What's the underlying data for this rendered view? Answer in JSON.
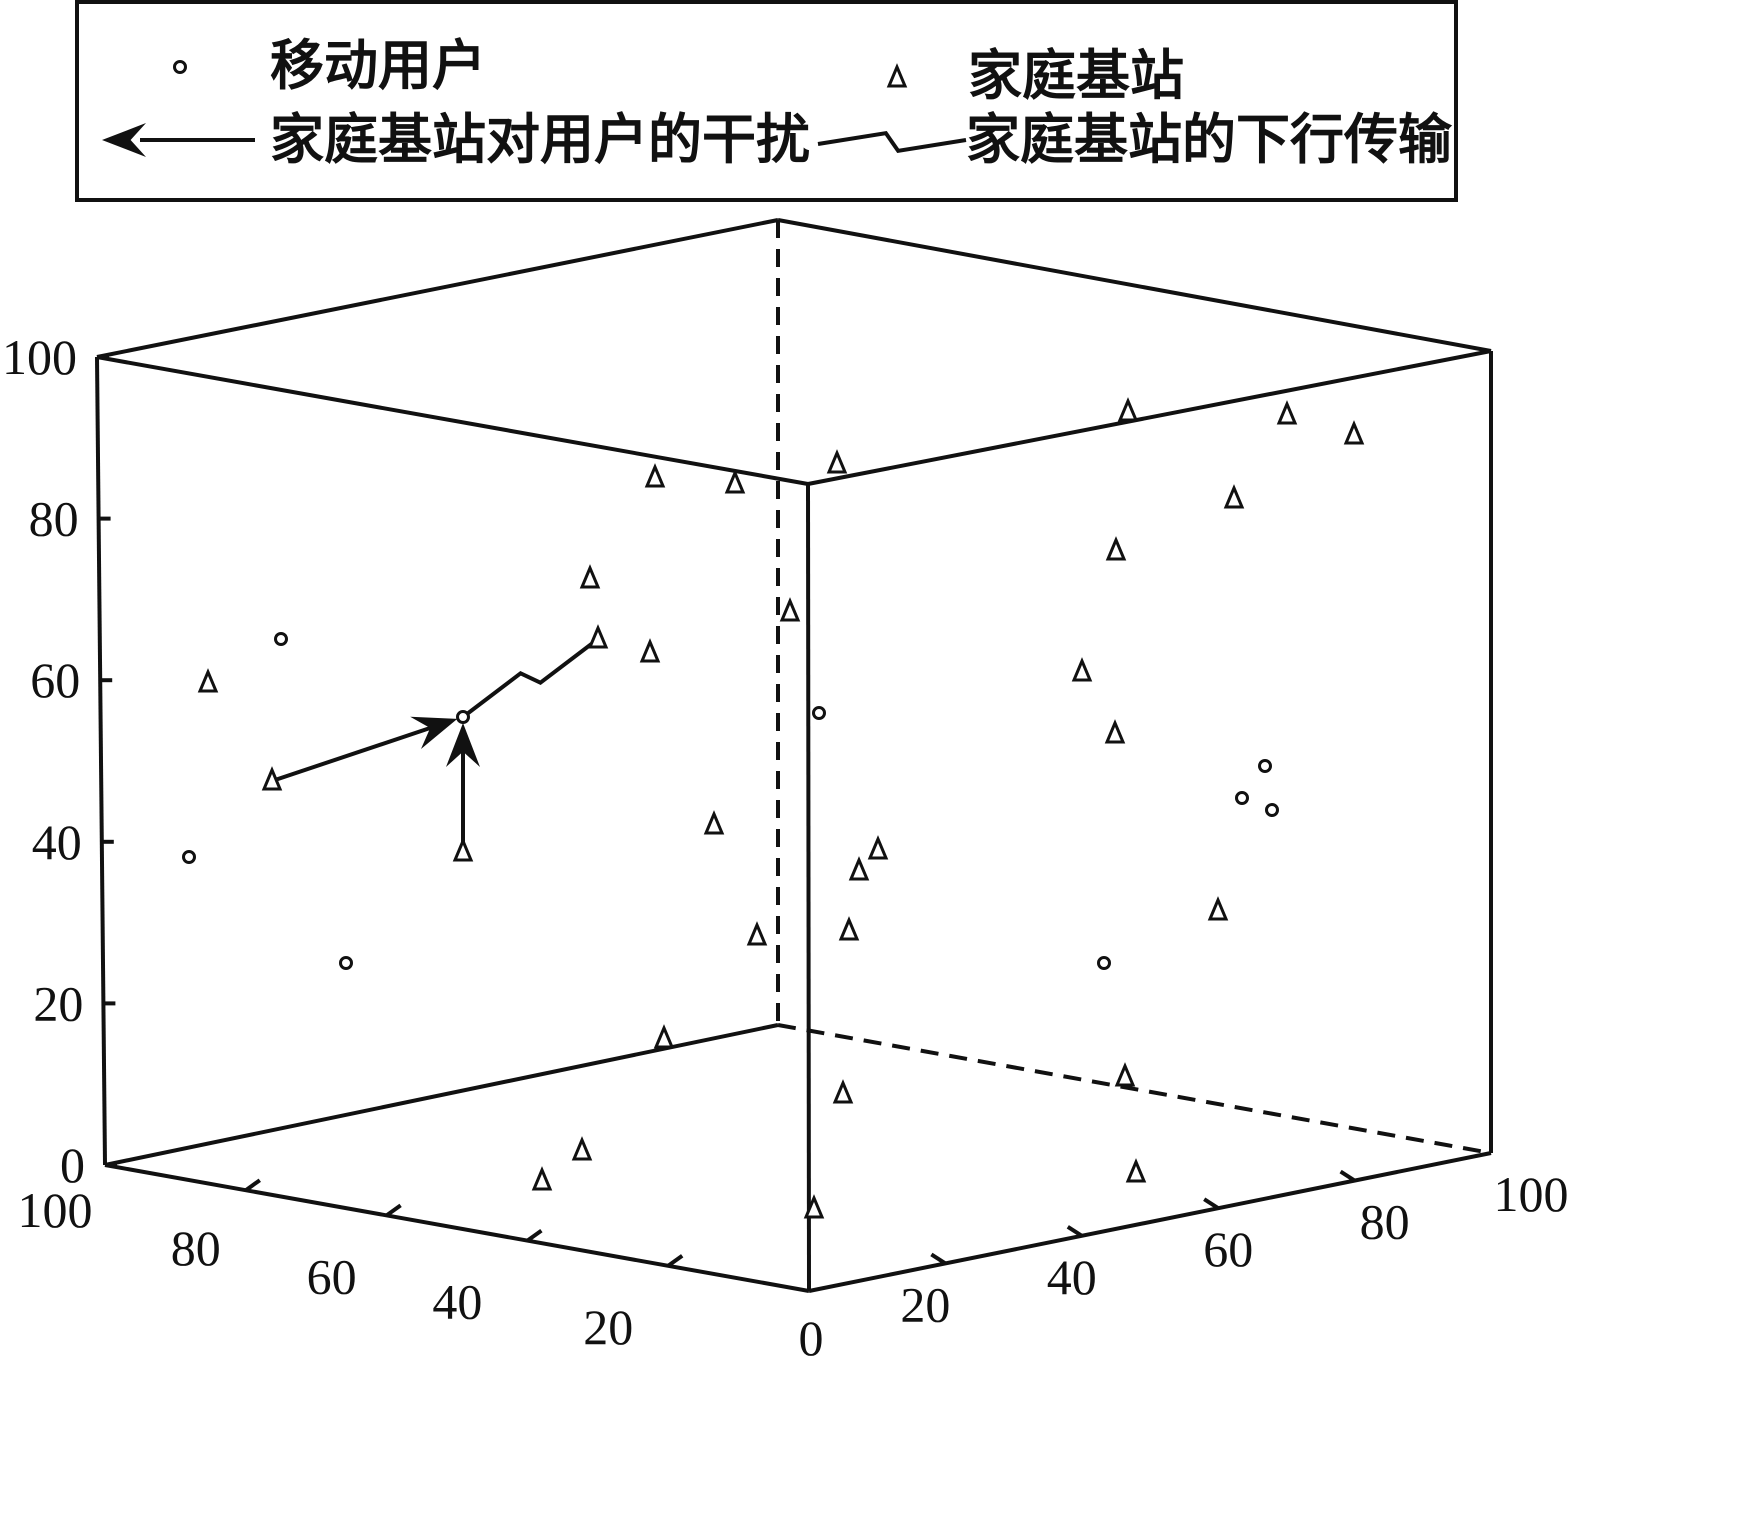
{
  "chart_data": {
    "type": "scatter",
    "dimensions": 3,
    "legend": {
      "placement": "top",
      "items": [
        {
          "label": "移动用户",
          "marker": "circle"
        },
        {
          "label": "家庭基站",
          "marker": "triangle"
        },
        {
          "label": "家庭基站对用户的干扰",
          "marker": "arrow"
        },
        {
          "label": "家庭基站的下行传输",
          "marker": "lightning"
        }
      ]
    },
    "axes": {
      "z_ticks": [
        "0",
        "20",
        "40",
        "60",
        "80",
        "100"
      ],
      "left_ticks": [
        "100",
        "80",
        "60",
        "40",
        "20",
        "0"
      ],
      "right_ticks": [
        "0",
        "20",
        "40",
        "60",
        "80",
        "100"
      ],
      "range": [
        0,
        100
      ]
    },
    "series": [
      {
        "name": "移动用户",
        "marker": "circle",
        "points": [
          [
            281,
            639
          ],
          [
            463,
            717
          ],
          [
            189,
            857
          ],
          [
            346,
            963
          ],
          [
            819,
            713
          ],
          [
            1265,
            766
          ],
          [
            1242,
            798
          ],
          [
            1272,
            810
          ],
          [
            1104,
            963
          ]
        ]
      },
      {
        "name": "家庭基站",
        "marker": "triangle",
        "points": [
          [
            655,
            478
          ],
          [
            735,
            484
          ],
          [
            837,
            464
          ],
          [
            590,
            579
          ],
          [
            598,
            639
          ],
          [
            650,
            653
          ],
          [
            790,
            612
          ],
          [
            208,
            683
          ],
          [
            272,
            781
          ],
          [
            463,
            852
          ],
          [
            714,
            825
          ],
          [
            757,
            936
          ],
          [
            859,
            871
          ],
          [
            878,
            850
          ],
          [
            849,
            931
          ],
          [
            664,
            1039
          ],
          [
            843,
            1094
          ],
          [
            582,
            1151
          ],
          [
            542,
            1181
          ],
          [
            814,
            1209
          ],
          [
            1128,
            412
          ],
          [
            1287,
            415
          ],
          [
            1354,
            435
          ],
          [
            1234,
            499
          ],
          [
            1116,
            551
          ],
          [
            1082,
            672
          ],
          [
            1115,
            734
          ],
          [
            1218,
            911
          ],
          [
            1125,
            1077
          ],
          [
            1136,
            1173
          ]
        ]
      }
    ],
    "interference_arrows": [
      {
        "from": [
          272,
          781
        ],
        "to": [
          463,
          717
        ]
      },
      {
        "from": [
          463,
          852
        ],
        "to": [
          463,
          717
        ]
      }
    ],
    "downlink_transmission": [
      {
        "from": [
          598,
          639
        ],
        "to": [
          463,
          717
        ]
      }
    ]
  }
}
